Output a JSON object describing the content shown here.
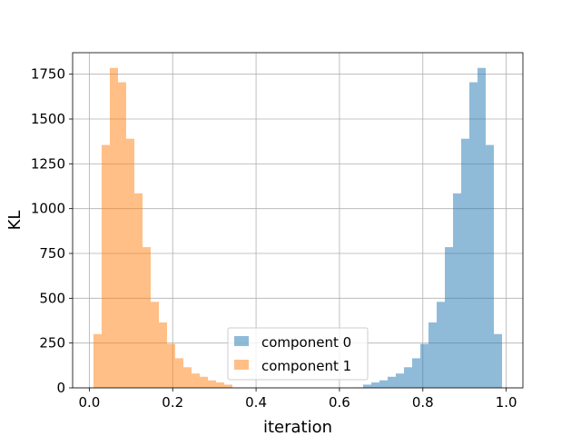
{
  "chart_data": {
    "type": "bar",
    "subtype": "histogram",
    "title": "",
    "xlabel": "iteration",
    "ylabel": "KL",
    "xlim": [
      -0.04,
      1.04
    ],
    "ylim": [
      0,
      1870
    ],
    "xticks": [
      0.0,
      0.2,
      0.4,
      0.6,
      0.8,
      1.0
    ],
    "xtick_labels": [
      "0.0",
      "0.2",
      "0.4",
      "0.6",
      "0.8",
      "1.0"
    ],
    "yticks": [
      0,
      250,
      500,
      750,
      1000,
      1250,
      1500,
      1750
    ],
    "ytick_labels": [
      "0",
      "250",
      "500",
      "750",
      "1000",
      "1250",
      "1500",
      "1750"
    ],
    "grid": true,
    "legend_position": "lower center",
    "bin_width": 0.0196,
    "series": [
      {
        "name": "component 0",
        "color": "#1f77b4",
        "alpha": 0.5,
        "bin_starts": [
          0.6372,
          0.6568,
          0.6764,
          0.696,
          0.7156,
          0.7352,
          0.7548,
          0.7744,
          0.794,
          0.8136,
          0.8332,
          0.8528,
          0.8724,
          0.892,
          0.9116,
          0.9312,
          0.9508,
          0.9704
        ],
        "values": [
          2,
          18,
          30,
          42,
          62,
          80,
          115,
          165,
          245,
          365,
          480,
          785,
          1085,
          1390,
          1705,
          1785,
          1355,
          300
        ]
      },
      {
        "name": "component 1",
        "color": "#ff7f0e",
        "alpha": 0.5,
        "bin_starts": [
          0.01,
          0.0296,
          0.0492,
          0.0688,
          0.0884,
          0.108,
          0.1276,
          0.1472,
          0.1668,
          0.1864,
          0.206,
          0.2256,
          0.2452,
          0.2648,
          0.2844,
          0.304,
          0.3236,
          0.3432
        ],
        "values": [
          300,
          1355,
          1785,
          1705,
          1390,
          1085,
          785,
          480,
          365,
          245,
          165,
          115,
          80,
          62,
          42,
          30,
          18,
          2
        ]
      }
    ]
  }
}
